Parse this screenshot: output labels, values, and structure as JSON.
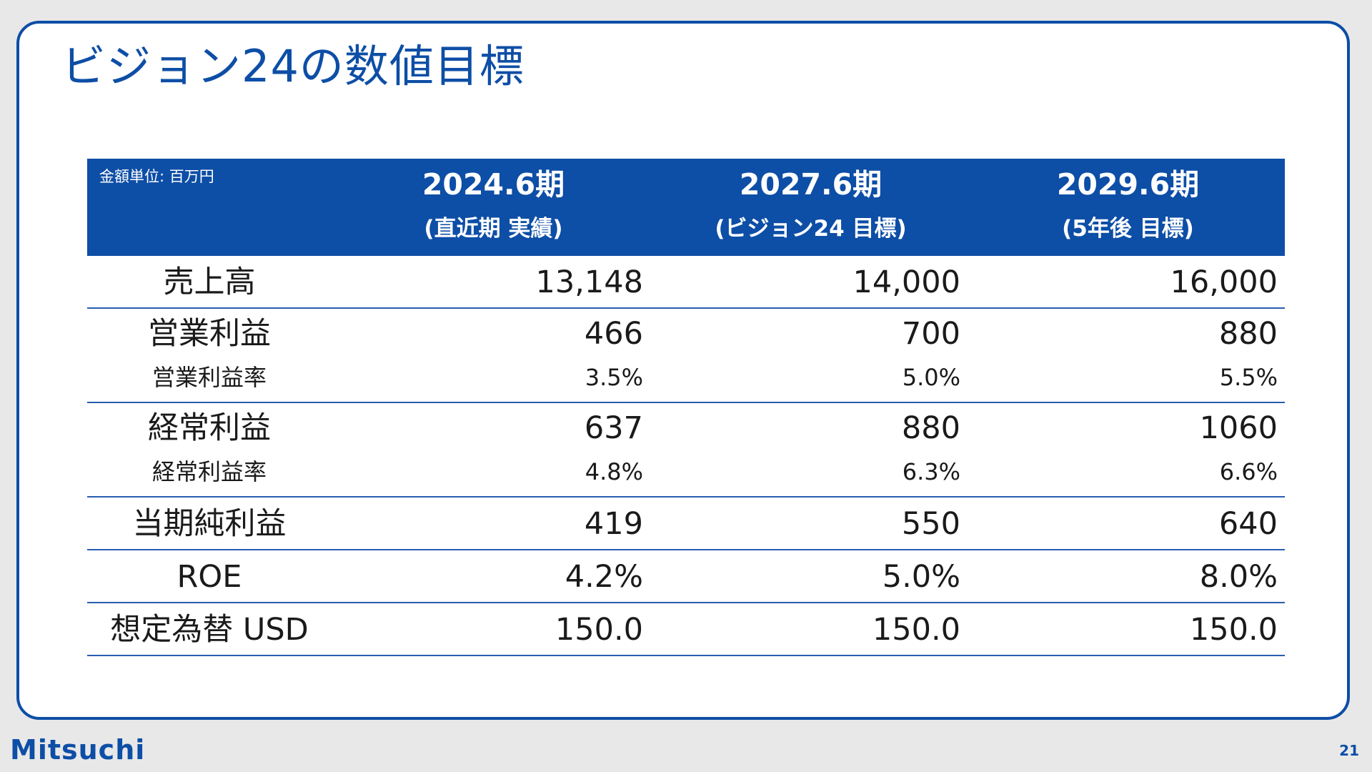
{
  "slide": {
    "title": "ビジョン24の数値目標",
    "page_number": "21",
    "logo_text": "Mitsuchi"
  },
  "table": {
    "unit_note": "金額単位: 百万円",
    "columns": [
      {
        "period": "2024.6期",
        "subtitle": "(直近期 実績)"
      },
      {
        "period": "2027.6期",
        "subtitle": "(ビジョン24 目標)"
      },
      {
        "period": "2029.6期",
        "subtitle": "(5年後 目標)"
      }
    ],
    "rows": [
      {
        "label": "売上高",
        "values": [
          "13,148",
          "14,000",
          "16,000"
        ]
      },
      {
        "label": "営業利益",
        "values": [
          "466",
          "700",
          "880"
        ]
      },
      {
        "label": "営業利益率",
        "values": [
          "3.5%",
          "5.0%",
          "5.5%"
        ]
      },
      {
        "label": "経常利益",
        "values": [
          "637",
          "880",
          "1060"
        ]
      },
      {
        "label": "経常利益率",
        "values": [
          "4.8%",
          "6.3%",
          "6.6%"
        ]
      },
      {
        "label": "当期純利益",
        "values": [
          "419",
          "550",
          "640"
        ]
      },
      {
        "label": "ROE",
        "values": [
          "4.2%",
          "5.0%",
          "8.0%"
        ]
      },
      {
        "label": "想定為替 USD",
        "values": [
          "150.0",
          "150.0",
          "150.0"
        ]
      }
    ]
  },
  "colors": {
    "brand_blue": "#0d4ea6",
    "rule_blue": "#2a5db0",
    "background": "#e8e8e8"
  }
}
